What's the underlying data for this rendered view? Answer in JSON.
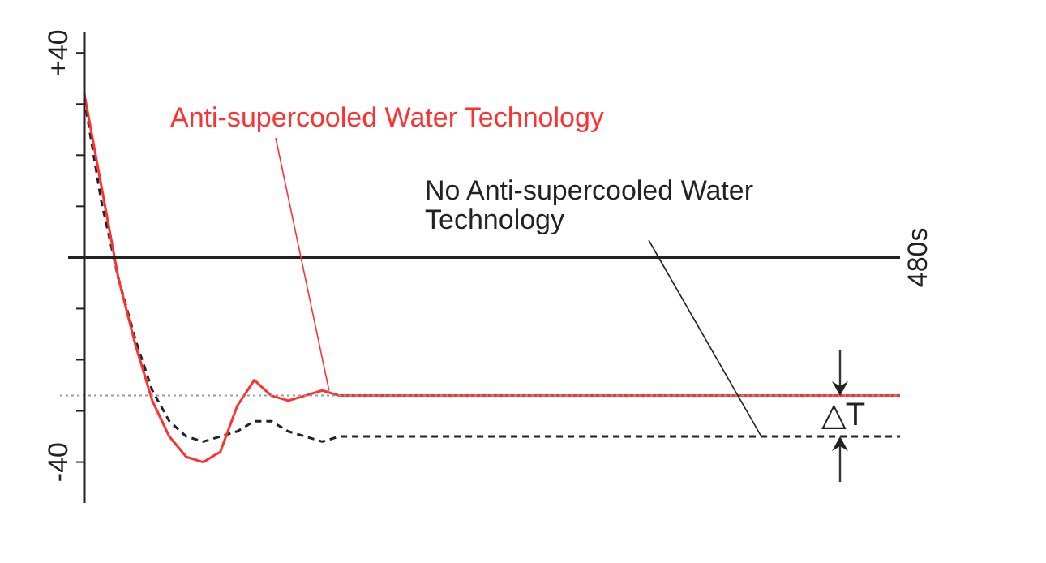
{
  "chart_data": {
    "type": "line",
    "ylim": [
      -48,
      44
    ],
    "categories": [
      null,
      null,
      null,
      null,
      null,
      null,
      null,
      null,
      null,
      null,
      null,
      null,
      null,
      null,
      null,
      null,
      null,
      null,
      null,
      null,
      null,
      null,
      null,
      null,
      null,
      null,
      null,
      null,
      null,
      null,
      null,
      null,
      null,
      null,
      null,
      null,
      null,
      null,
      null,
      null,
      null,
      null,
      null,
      null,
      null,
      null,
      null,
      null,
      null
    ],
    "yticks": [
      {
        "value": 40,
        "label": "+40"
      },
      {
        "value": 30,
        "label": null
      },
      {
        "value": 20,
        "label": null
      },
      {
        "value": 10,
        "label": null
      },
      {
        "value": 0,
        "label": null
      },
      {
        "value": -10,
        "label": null
      },
      {
        "value": -20,
        "label": null
      },
      {
        "value": -30,
        "label": null
      },
      {
        "value": -40,
        "label": "-40"
      }
    ],
    "legend": false,
    "marker": "none",
    "series": [
      {
        "name": "Anti-supercooled Water Technology",
        "color": "#ff3030",
        "line_style": "solid",
        "values": [
          32,
          14,
          -4,
          -17,
          -28,
          -35,
          -39,
          -40,
          -38,
          -29,
          -24,
          -27,
          -28,
          -27,
          -26,
          -27,
          -27,
          -27,
          -27,
          -27,
          -27,
          -27,
          -27,
          -27,
          -27,
          -27,
          -27,
          -27,
          -27,
          -27,
          -27,
          -27,
          -27,
          -27,
          -27,
          -27,
          -27,
          -27,
          -27,
          -27,
          -27,
          -27,
          -27,
          -27,
          -27,
          -27,
          -27,
          -27,
          -27
        ]
      },
      {
        "name": "No Anti-supercooled Water Technology",
        "color": "#222222",
        "line_style": "dashed",
        "values": [
          31,
          11,
          -4,
          -16,
          -26,
          -32,
          -35,
          -36,
          -35,
          -34,
          -32,
          -32,
          -34,
          -35,
          -36,
          -35,
          -35,
          -35,
          -35,
          -35,
          -35,
          -35,
          -35,
          -35,
          -35,
          -35,
          -35,
          -35,
          -35,
          -35,
          -35,
          -35,
          -35,
          -35,
          -35,
          -35,
          -35,
          -35,
          -35,
          -35,
          -35,
          -35,
          -35,
          -35,
          -35,
          -35,
          -35,
          -35,
          -35
        ]
      }
    ],
    "ref_lines": [
      {
        "axis": "y",
        "value": -27,
        "color": "#999999",
        "line_style": "dotted"
      }
    ],
    "annotations": [
      "480s",
      "△T"
    ]
  }
}
